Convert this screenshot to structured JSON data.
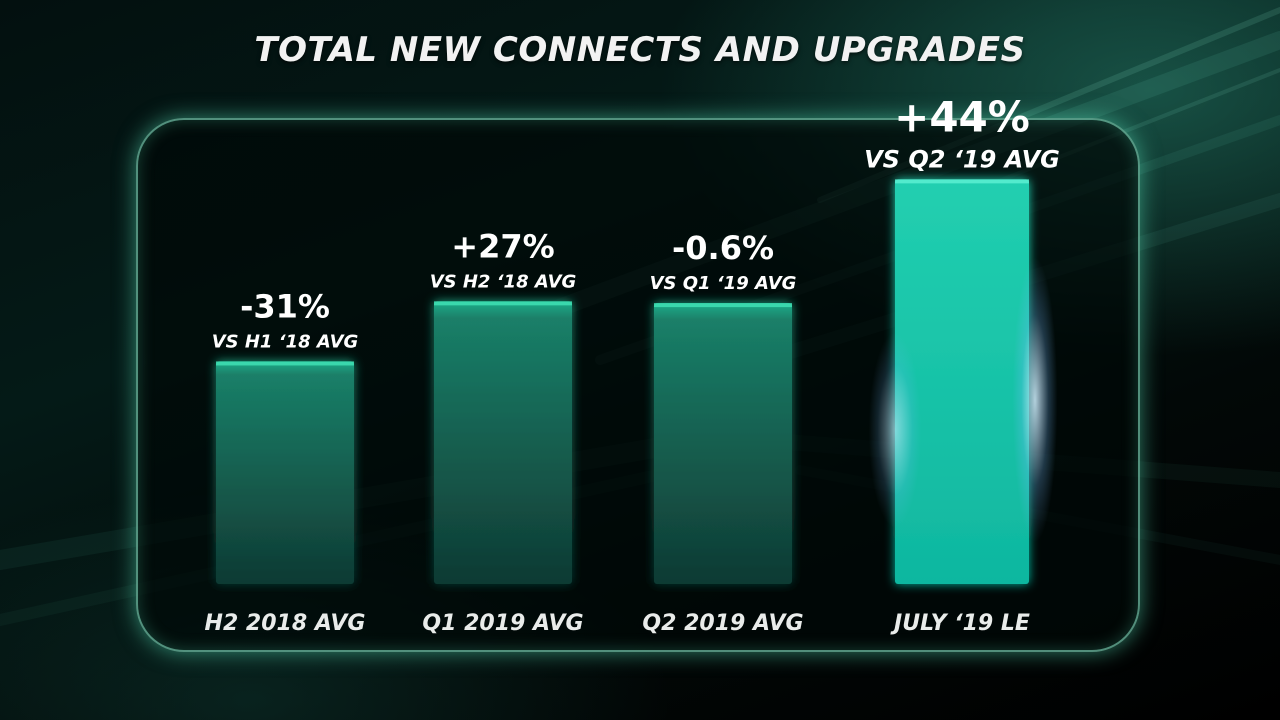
{
  "title": "TOTAL NEW CONNECTS AND UPGRADES",
  "colors": {
    "bar_top": "#1fae8a",
    "bar_bottom": "#0f3a33",
    "bar_highlight": "#15c2a6",
    "panel_border": "#96ffdc"
  },
  "chart_data": {
    "type": "bar",
    "title": "TOTAL NEW CONNECTS AND UPGRADES",
    "xlabel": "",
    "ylabel": "",
    "categories": [
      "H2 2018 AVG",
      "Q1 2019 AVG",
      "Q2 2019 AVG",
      "JULY ‘19 LE"
    ],
    "values": [
      100,
      127,
      126.2,
      181.8
    ],
    "ylim": [
      0,
      195
    ],
    "grid": false,
    "change_labels": [
      "-31%",
      "+27%",
      "-0.6%",
      "+44%"
    ],
    "comparison_labels": [
      "VS H1 ‘18 AVG",
      "VS H2 ‘18 AVG",
      "VS Q1 ‘19 AVG",
      "VS Q2 ‘19 AVG"
    ],
    "highlight_index": 3
  }
}
